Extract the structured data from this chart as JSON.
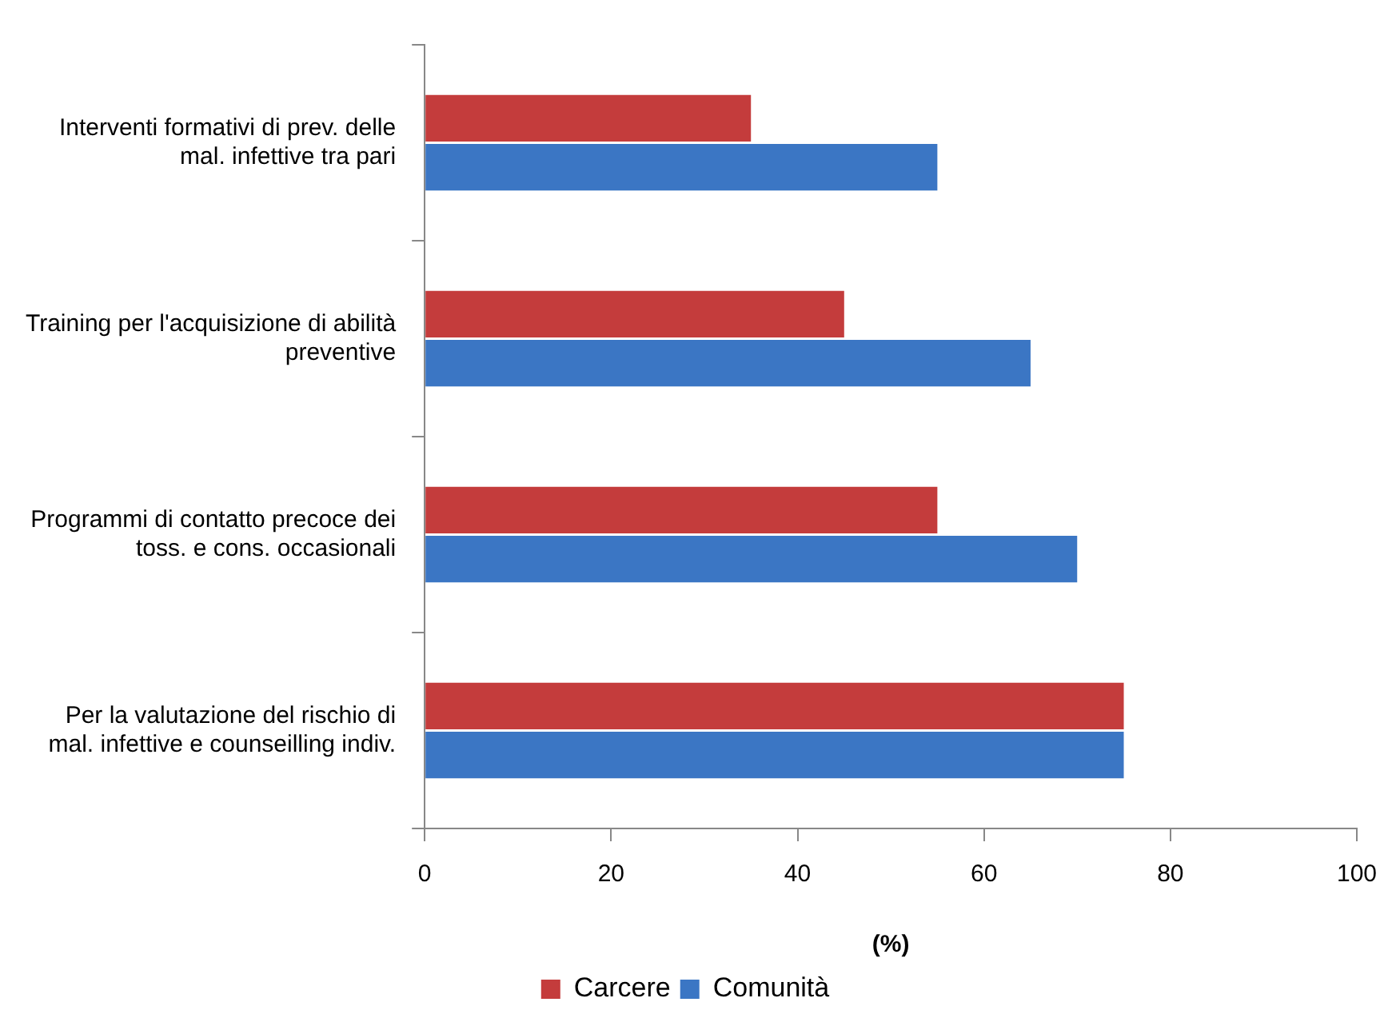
{
  "chart_data": {
    "type": "bar",
    "orientation": "horizontal",
    "xlabel": "(%)",
    "categories": [
      "Interventi formativi di prev. delle\nmal. infettive tra pari",
      "Training per l'acquisizione di abilità\npreventive",
      "Programmi di contatto precoce dei\ntoss. e cons. occasionali",
      "Per la valutazione del rischio di\nmal. infettive e counseilling indiv."
    ],
    "series": [
      {
        "name": "Carcere",
        "color": "#c43c3c",
        "values": [
          35,
          45,
          55,
          75
        ]
      },
      {
        "name": "Comunità",
        "color": "#3b76c4",
        "values": [
          55,
          65,
          70,
          75
        ]
      }
    ],
    "xlim": [
      0,
      100
    ],
    "xticks": [
      0,
      20,
      40,
      60,
      80,
      100
    ],
    "grid": false,
    "legend": "bottom"
  }
}
